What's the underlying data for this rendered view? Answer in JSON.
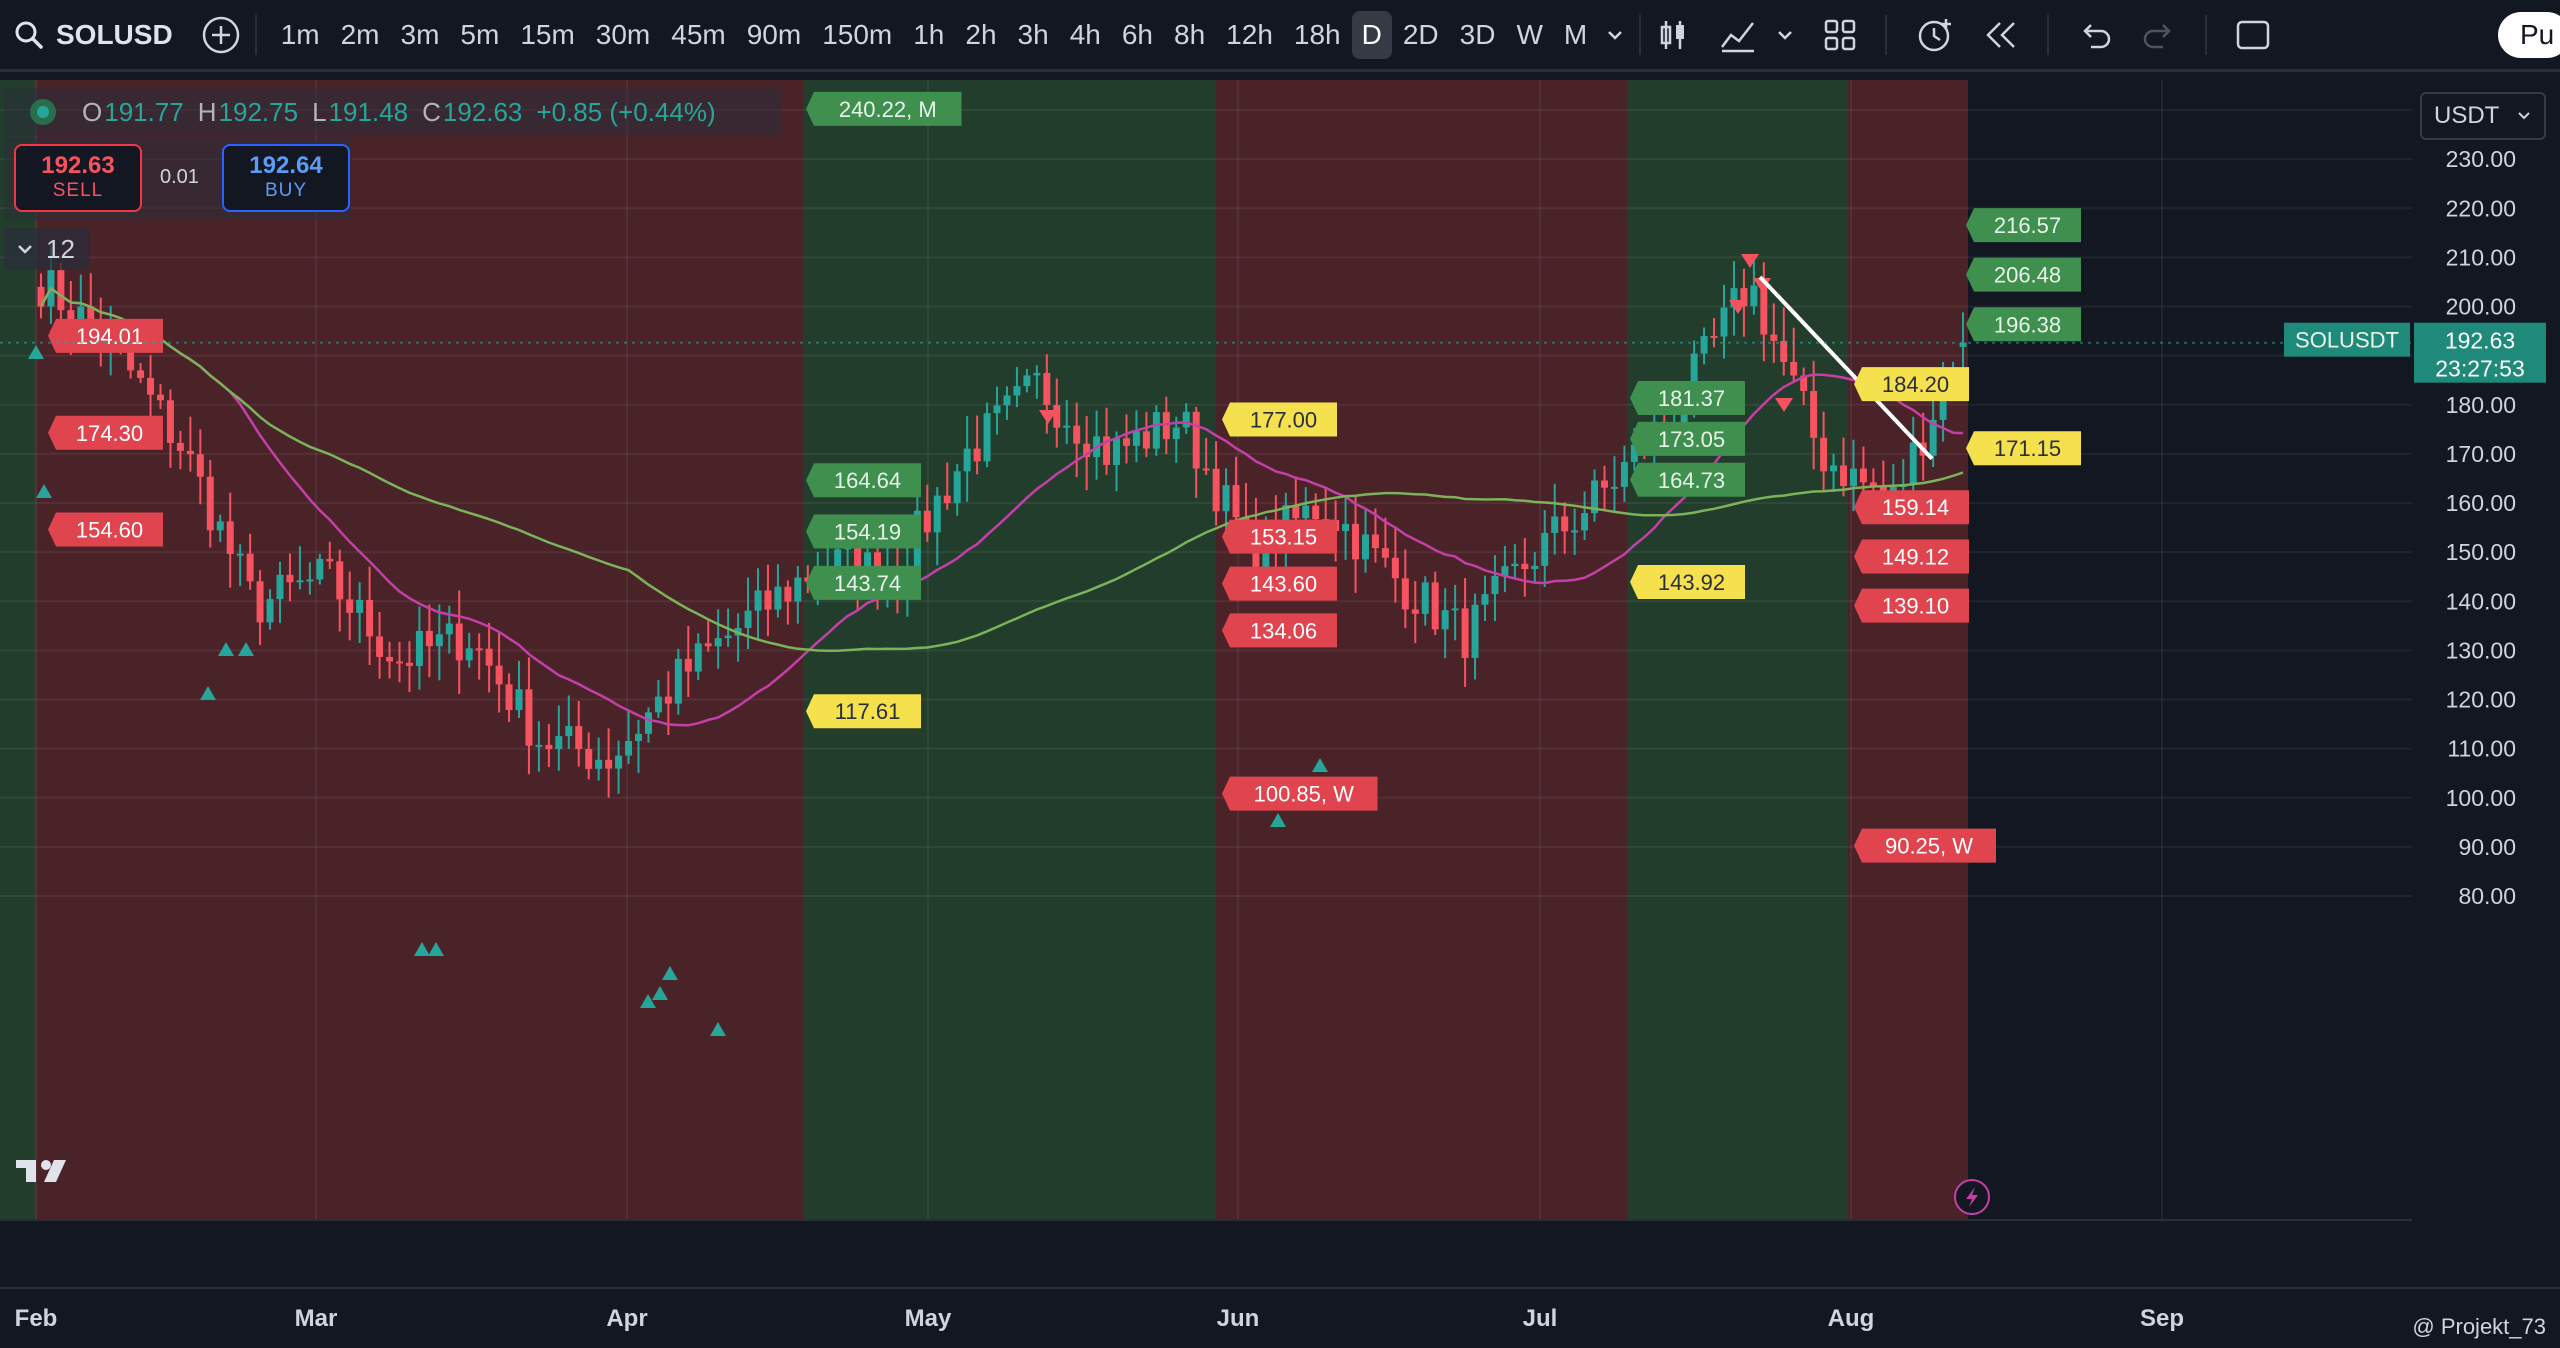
{
  "toolbar": {
    "symbol": "SOLUSD",
    "timeframes": [
      "1m",
      "2m",
      "3m",
      "5m",
      "15m",
      "30m",
      "45m",
      "90m",
      "150m",
      "1h",
      "2h",
      "3h",
      "4h",
      "6h",
      "8h",
      "12h",
      "18h",
      "D",
      "2D",
      "3D",
      "W",
      "M"
    ],
    "active_timeframe": "D",
    "publish_label": "Pu"
  },
  "legend": {
    "open_key": "O",
    "open": "191.77",
    "high_key": "H",
    "high": "192.75",
    "low_key": "L",
    "low": "191.48",
    "close_key": "C",
    "close": "192.63",
    "change": "+0.85 (+0.44%)"
  },
  "trade": {
    "sell_price": "192.63",
    "sell_label": "SELL",
    "buy_price": "192.64",
    "buy_label": "BUY",
    "spread": "0.01"
  },
  "indicators_count": "12",
  "currency": "USDT",
  "price_tag": {
    "symbol": "SOLUSDT",
    "price": "192.63",
    "countdown": "23:27:53"
  },
  "watermark": "@ Projekt_73",
  "colors": {
    "up": "#26a69a",
    "down": "#f7525f",
    "ma_fast": "#c440a8",
    "ma_slow": "#7cb35a",
    "bg": "#131722",
    "zone_red": "#4a2329",
    "zone_green": "#233d2c"
  },
  "chart_data": {
    "type": "candlestick",
    "symbol": "SOLUSD",
    "interval": "D",
    "xlabels": [
      "Feb",
      "Mar",
      "Apr",
      "May",
      "Jun",
      "Jul",
      "Aug",
      "Sep"
    ],
    "y_ticks": [
      80,
      90,
      100,
      110,
      120,
      130,
      140,
      150,
      160,
      170,
      180,
      190,
      200,
      210,
      220,
      230,
      240
    ],
    "ylim": [
      76,
      246
    ],
    "ohlc_last": {
      "open": 191.77,
      "high": 192.75,
      "low": 191.48,
      "close": 192.63
    },
    "close_approx": [
      {
        "x": "Feb",
        "y": 205
      },
      {
        "x": "Feb",
        "y": 192
      },
      {
        "x": "Mar",
        "y": 171
      },
      {
        "x": "Mar",
        "y": 139
      },
      {
        "x": "Mar",
        "y": 145
      },
      {
        "x": "Mar",
        "y": 128
      },
      {
        "x": "Apr",
        "y": 133
      },
      {
        "x": "Apr",
        "y": 112
      },
      {
        "x": "Apr",
        "y": 108
      },
      {
        "x": "Apr",
        "y": 125
      },
      {
        "x": "Apr",
        "y": 137
      },
      {
        "x": "May",
        "y": 148
      },
      {
        "x": "May",
        "y": 146
      },
      {
        "x": "May",
        "y": 170
      },
      {
        "x": "May",
        "y": 184
      },
      {
        "x": "May",
        "y": 170
      },
      {
        "x": "Jun",
        "y": 177
      },
      {
        "x": "Jun",
        "y": 150
      },
      {
        "x": "Jun",
        "y": 160
      },
      {
        "x": "Jun",
        "y": 145
      },
      {
        "x": "Jun",
        "y": 133
      },
      {
        "x": "Jul",
        "y": 150
      },
      {
        "x": "Jul",
        "y": 163
      },
      {
        "x": "Jul",
        "y": 180
      },
      {
        "x": "Jul",
        "y": 205
      },
      {
        "x": "Aug",
        "y": 170
      },
      {
        "x": "Aug",
        "y": 160
      },
      {
        "x": "Aug",
        "y": 192.63
      }
    ],
    "zones": [
      {
        "from": "Feb",
        "to": "late Apr",
        "color": "red"
      },
      {
        "from": "late Apr",
        "to": "late May",
        "color": "green"
      },
      {
        "from": "late May",
        "to": "early Jul",
        "color": "red"
      },
      {
        "from": "early Jul",
        "to": "late Jul",
        "color": "green"
      },
      {
        "from": "late Jul",
        "to": "mid Aug",
        "color": "red"
      }
    ],
    "level_labels": [
      {
        "value": 240.22,
        "text": "240.22, M",
        "color": "green"
      },
      {
        "value": 216.57,
        "text": "216.57",
        "color": "green"
      },
      {
        "value": 206.48,
        "text": "206.48",
        "color": "green"
      },
      {
        "value": 196.38,
        "text": "196.38",
        "color": "green"
      },
      {
        "value": 194.01,
        "text": "194.01",
        "color": "red"
      },
      {
        "value": 184.2,
        "text": "184.20",
        "color": "yellow"
      },
      {
        "value": 181.37,
        "text": "181.37",
        "color": "green"
      },
      {
        "value": 177.0,
        "text": "177.00",
        "color": "yellow"
      },
      {
        "value": 174.3,
        "text": "174.30",
        "color": "red"
      },
      {
        "value": 173.05,
        "text": "173.05",
        "color": "green"
      },
      {
        "value": 171.15,
        "text": "171.15",
        "color": "yellow"
      },
      {
        "value": 164.73,
        "text": "164.73",
        "color": "green"
      },
      {
        "value": 164.64,
        "text": "164.64",
        "color": "green"
      },
      {
        "value": 159.14,
        "text": "159.14",
        "color": "red"
      },
      {
        "value": 154.6,
        "text": "154.60",
        "color": "red"
      },
      {
        "value": 154.19,
        "text": "154.19",
        "color": "green"
      },
      {
        "value": 153.15,
        "text": "153.15",
        "color": "red"
      },
      {
        "value": 149.12,
        "text": "149.12",
        "color": "red"
      },
      {
        "value": 143.92,
        "text": "143.92",
        "color": "yellow"
      },
      {
        "value": 143.74,
        "text": "143.74",
        "color": "green"
      },
      {
        "value": 143.6,
        "text": "143.60",
        "color": "red"
      },
      {
        "value": 139.1,
        "text": "139.10",
        "color": "red"
      },
      {
        "value": 134.06,
        "text": "134.06",
        "color": "red"
      },
      {
        "value": 117.61,
        "text": "117.61",
        "color": "yellow"
      },
      {
        "value": 100.85,
        "text": "100.85, W",
        "color": "red"
      },
      {
        "value": 90.25,
        "text": "90.25, W",
        "color": "red"
      }
    ],
    "grid": true,
    "legend_position": "top-left"
  }
}
